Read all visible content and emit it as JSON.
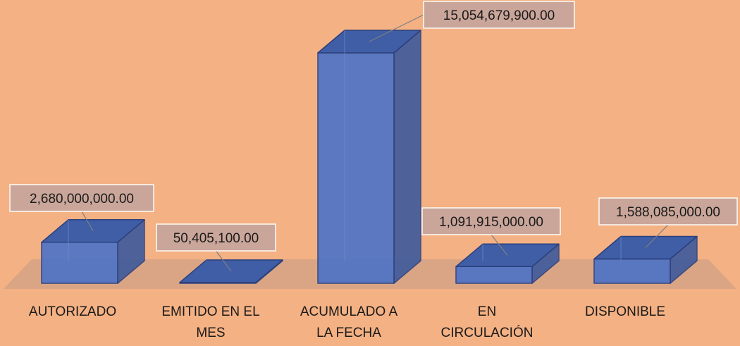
{
  "chart_data": {
    "type": "bar3d",
    "categories": [
      "AUTORIZADO",
      "EMITIDO EN EL MES",
      "ACUMULADO A LA FECHA",
      "EN CIRCULACIÓN",
      "DISPONIBLE"
    ],
    "values": [
      2680000000,
      50405100,
      15054679900,
      1091915000,
      1588085000
    ],
    "value_labels": [
      "2,680,000,000.00",
      "50,405,100.00",
      "15,054,679,900.00",
      "1,091,915,000.00",
      "1,588,085,000.00"
    ],
    "color": "#4f74c6"
  }
}
